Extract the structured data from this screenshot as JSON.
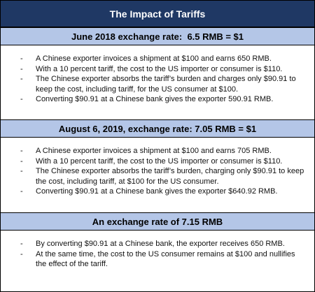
{
  "title": "The Impact of Tariffs",
  "sections": [
    {
      "heading": "June 2018 exchange rate:  6.5 RMB = $1",
      "bullets": [
        "A Chinese exporter invoices a shipment at $100 and earns 650 RMB.",
        "With a 10 percent tariff, the cost to the US importer or consumer is $110.",
        "The Chinese exporter absorbs the tariff’s burden and charges only $90.91 to keep the cost, including tariff, for the US consumer at $100.",
        "Converting $90.91 at a Chinese bank gives the exporter 590.91 RMB."
      ]
    },
    {
      "heading": "August 6, 2019, exchange rate: 7.05 RMB = $1",
      "bullets": [
        "A Chinese exporter invoices a shipment at $100 and earns 705 RMB.",
        "With a 10 percent tariff, the cost to the US importer or consumer is $110.",
        "The Chinese exporter absorbs the tariff’s burden, charging only $90.91 to keep the cost, including tariff, at $100 for the US consumer.",
        "Converting $90.91 at a Chinese bank gives the exporter $640.92 RMB."
      ]
    },
    {
      "heading": "An exchange rate of 7.15 RMB",
      "bullets": [
        "By converting $90.91 at a Chinese bank, the exporter receives 650 RMB.",
        "At the same time, the cost to the US consumer remains at $100 and nullifies the effect of the tariff."
      ]
    }
  ]
}
